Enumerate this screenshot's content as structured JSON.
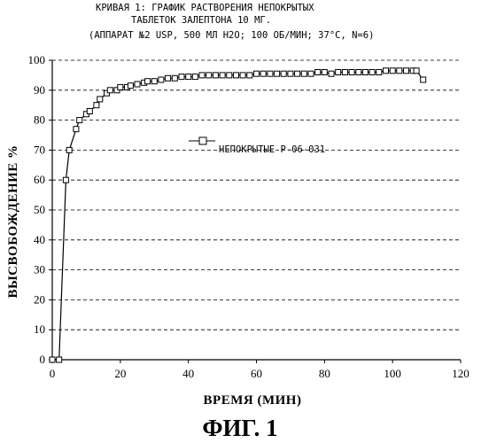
{
  "chart_data": {
    "type": "line",
    "title_lines": [
      "КРИВАЯ 1: ГРАФИК РАСТВОРЕНИЯ НЕПОКРЫТЫХ",
      "ТАБЛЕТОК ЗАЛЕПТОНА 10 МГ.",
      "(АППАРАТ №2 USP, 500 МЛ H2O; 100 ОБ/МИН; 37°C, N=6)"
    ],
    "xlabel": "ВРЕМЯ (МИН)",
    "ylabel": "ВЫСВОБОЖДЕНИЕ %",
    "xlim": [
      0,
      120
    ],
    "ylim": [
      0,
      100
    ],
    "x_ticks": [
      0,
      20,
      40,
      60,
      80,
      100,
      120
    ],
    "y_ticks": [
      0,
      10,
      20,
      30,
      40,
      50,
      60,
      70,
      80,
      90,
      100
    ],
    "grid": "horizontal-dashed",
    "legend_position": "center",
    "series": [
      {
        "name": "НЕПОКРЫТЫЕ Р-06-031",
        "marker": "square-open",
        "x": [
          0,
          2,
          4,
          5,
          7,
          8,
          10,
          11,
          13,
          14,
          16,
          17,
          19,
          20,
          22,
          23,
          25,
          27,
          28,
          30,
          32,
          34,
          36,
          38,
          40,
          42,
          44,
          46,
          48,
          50,
          52,
          54,
          56,
          58,
          60,
          62,
          64,
          66,
          68,
          70,
          72,
          74,
          76,
          78,
          80,
          82,
          84,
          86,
          88,
          90,
          92,
          94,
          96,
          98,
          100,
          102,
          104,
          106,
          107,
          109
        ],
        "y": [
          0,
          0,
          60,
          70,
          77,
          80,
          82,
          83,
          85,
          87,
          89,
          90,
          90,
          91,
          91,
          91.5,
          92,
          92.5,
          93,
          93,
          93.5,
          94,
          94,
          94.5,
          94.5,
          94.5,
          95,
          95,
          95,
          95,
          95,
          95,
          95,
          95,
          95.5,
          95.5,
          95.5,
          95.5,
          95.5,
          95.5,
          95.5,
          95.5,
          95.5,
          96,
          96,
          95.5,
          96,
          96,
          96,
          96,
          96,
          96,
          96,
          96.5,
          96.5,
          96.5,
          96.5,
          96.5,
          96.5,
          93.5
        ]
      }
    ]
  },
  "caption": "ФИГ. 1"
}
